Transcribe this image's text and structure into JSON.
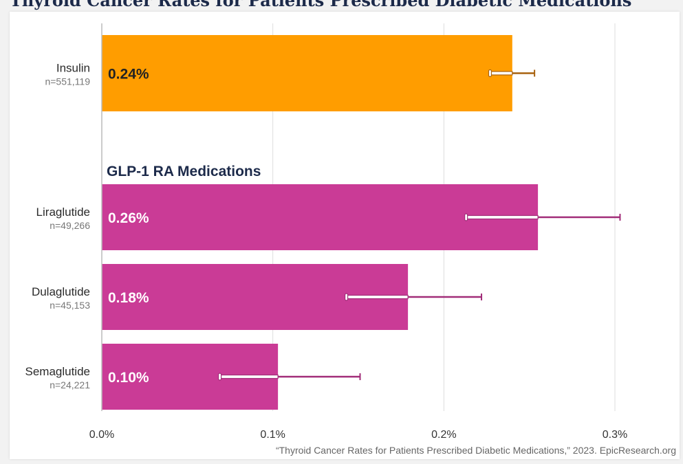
{
  "title": "Thyroid Cancer Rates for Patients Prescribed Diabetic Medications",
  "source": "“Thyroid Cancer Rates for Patients Prescribed Diabetic Medications,” 2023. EpicResearch.org",
  "group_label": "GLP-1 RA Medications",
  "colors": {
    "insulin": "#FF9D00",
    "insulin_error": "#A8620F",
    "glp1": "#CA3B96",
    "glp1_error": "#A12C78",
    "grid": "#dddddd",
    "axis": "#bbbbbb"
  },
  "chart_data": {
    "type": "bar",
    "orientation": "horizontal",
    "title": "Thyroid Cancer Rates for Patients Prescribed Diabetic Medications",
    "xlim": [
      0,
      0.33
    ],
    "x_ticks": [
      0,
      0.1,
      0.2,
      0.3
    ],
    "x_tick_labels": [
      "0.0%",
      "0.1%",
      "0.2%",
      "0.3%"
    ],
    "grid": true,
    "categories": [
      {
        "name": "Insulin",
        "n": "n=551,119",
        "value": 0.24,
        "label": "0.24%",
        "ci": [
          0.227,
          0.253
        ],
        "group": "insulin"
      },
      {
        "name": "Liraglutide",
        "n": "n=49,266",
        "value": 0.255,
        "label": "0.26%",
        "ci": [
          0.213,
          0.303
        ],
        "group": "glp1"
      },
      {
        "name": "Dulaglutide",
        "n": "n=45,153",
        "value": 0.179,
        "label": "0.18%",
        "ci": [
          0.143,
          0.222
        ],
        "group": "glp1"
      },
      {
        "name": "Semaglutide",
        "n": "n=24,221",
        "value": 0.103,
        "label": "0.10%",
        "ci": [
          0.069,
          0.151
        ],
        "group": "glp1"
      }
    ]
  }
}
